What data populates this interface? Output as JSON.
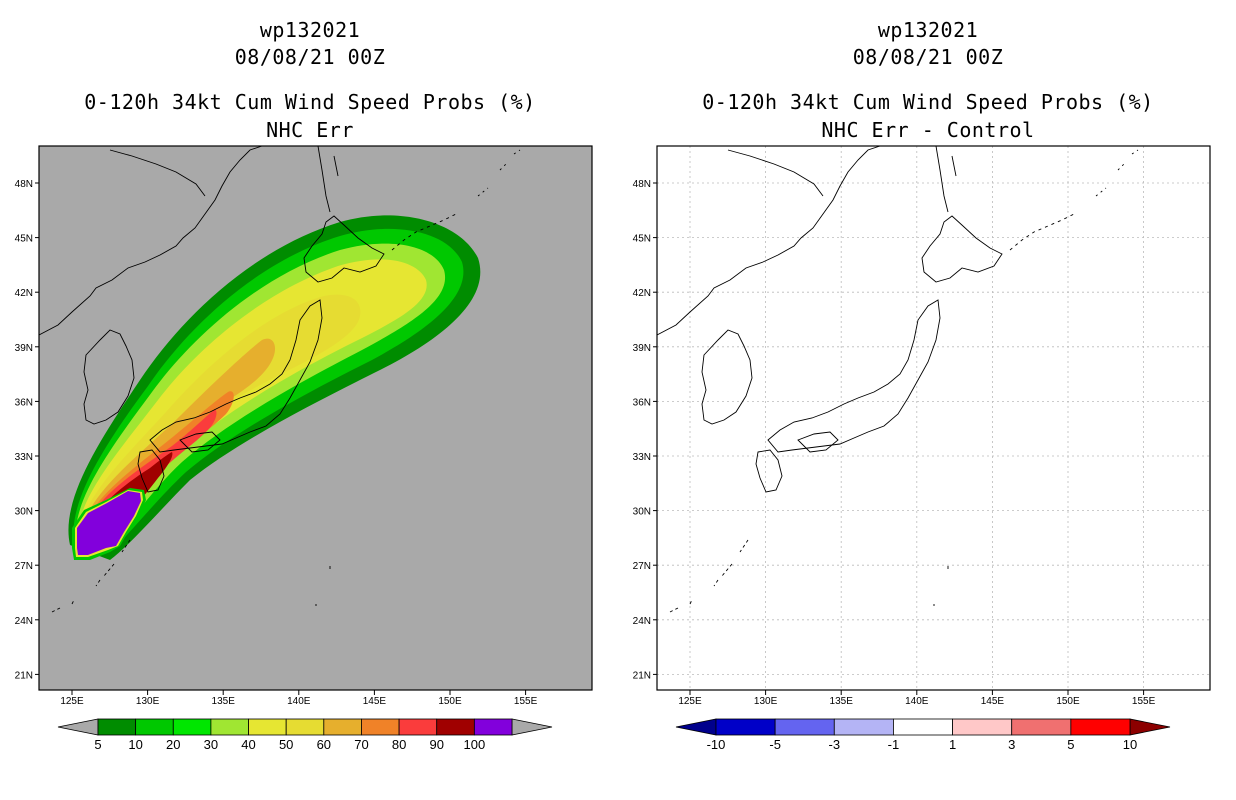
{
  "panels": {
    "left": {
      "storm_id": "wp132021",
      "date": "08/08/21 00Z",
      "product": "0-120h 34kt Cum Wind Speed Probs (%)",
      "subtitle": "NHC Err"
    },
    "right": {
      "storm_id": "wp132021",
      "date": "08/08/21 00Z",
      "product": "0-120h 34kt Cum Wind Speed Probs (%)",
      "subtitle": "NHC Err - Control"
    }
  },
  "map": {
    "lon_labels": [
      "125E",
      "130E",
      "135E",
      "140E",
      "145E",
      "150E",
      "155E"
    ],
    "lat_labels": [
      "48N",
      "45N",
      "42N",
      "39N",
      "36N",
      "33N",
      "30N",
      "27N",
      "24N",
      "21N"
    ],
    "land_color": "#ffffff",
    "left_background": "#a9a9a9"
  },
  "colorbars": {
    "left": {
      "labels": [
        "5",
        "10",
        "20",
        "30",
        "40",
        "50",
        "60",
        "70",
        "80",
        "90",
        "100"
      ],
      "colors": [
        "#008c00",
        "#00c800",
        "#00e600",
        "#a0e632",
        "#e6e632",
        "#e6dc32",
        "#e6af2d",
        "#f08228",
        "#fa3c3c",
        "#a00000",
        "#8200dc"
      ],
      "extend_colors": [
        "#a9a9a9",
        "#a9a9a9"
      ]
    },
    "right": {
      "labels": [
        "-10",
        "-5",
        "-3",
        "-1",
        "1",
        "3",
        "5",
        "10"
      ],
      "colors": [
        "#0000c8",
        "#6464f0",
        "#b4b4f5",
        "#ffffff",
        "#ffc8c8",
        "#f07070",
        "#ff0000"
      ],
      "extend_colors": [
        "#00008c",
        "#8c0000"
      ]
    }
  }
}
